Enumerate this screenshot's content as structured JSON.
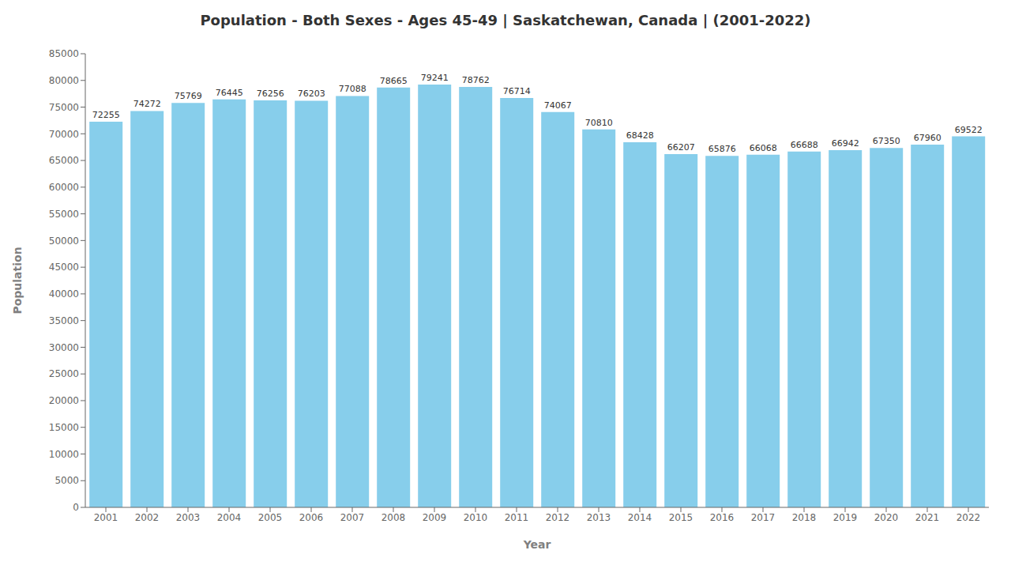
{
  "chart_data": {
    "type": "bar",
    "title": "Population - Both Sexes - Ages 45-49 | Saskatchewan, Canada |  (2001-2022)",
    "xlabel": "Year",
    "ylabel": "Population",
    "categories": [
      "2001",
      "2002",
      "2003",
      "2004",
      "2005",
      "2006",
      "2007",
      "2008",
      "2009",
      "2010",
      "2011",
      "2012",
      "2013",
      "2014",
      "2015",
      "2016",
      "2017",
      "2018",
      "2019",
      "2020",
      "2021",
      "2022"
    ],
    "values": [
      72255,
      74272,
      75769,
      76445,
      76256,
      76203,
      77088,
      78665,
      79241,
      78762,
      76714,
      74067,
      70810,
      68428,
      66207,
      65876,
      66068,
      66688,
      66942,
      67350,
      67960,
      69522
    ],
    "color": "#87ceeb",
    "ylim": [
      0,
      85000
    ],
    "yticks": [
      0,
      5000,
      10000,
      15000,
      20000,
      25000,
      30000,
      35000,
      40000,
      45000,
      50000,
      55000,
      60000,
      65000,
      70000,
      75000,
      80000,
      85000
    ],
    "grid": false,
    "data_labels": true
  }
}
